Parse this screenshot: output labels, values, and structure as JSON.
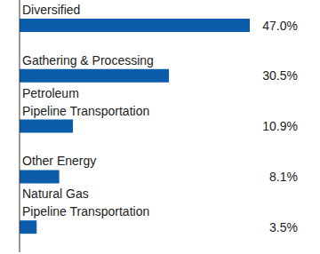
{
  "chart_data": {
    "type": "bar",
    "orientation": "horizontal",
    "categories": [
      "Diversified",
      "Gathering & Processing",
      "Petroleum Pipeline Transportation",
      "Other Energy",
      "Natural Gas Pipeline Transportation"
    ],
    "values": [
      47.0,
      30.5,
      10.9,
      8.1,
      3.5
    ],
    "value_labels": [
      "47.0%",
      "30.5%",
      "10.9%",
      "8.1%",
      "3.5%"
    ],
    "color": "#0b5cab",
    "xlim": [
      0,
      47
    ],
    "data_labels": true,
    "tick_labels": false,
    "grid": false
  }
}
